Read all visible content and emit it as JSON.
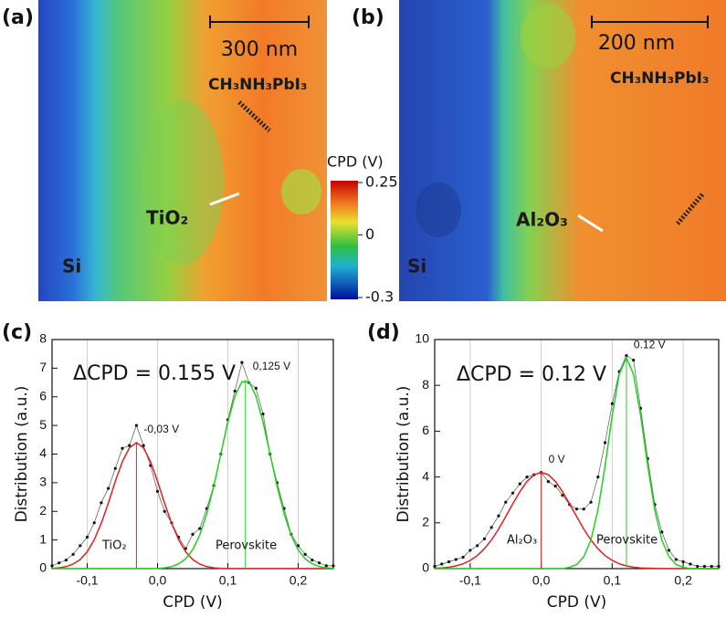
{
  "images": [
    {
      "label": "(a)",
      "scale_bar": "300 nm",
      "texts": [
        "CH₃NH₃PbI₃",
        "TiO₂",
        "Si"
      ]
    },
    {
      "label": "(b)",
      "scale_bar": "200 nm",
      "texts": [
        "CH₃NH₃PbI₃",
        "Al₂O₃",
        "Si"
      ]
    }
  ],
  "colorbar": {
    "title": "CPD (V)",
    "lim": [
      -0.3,
      0.25
    ],
    "ticks": [
      0.25,
      0,
      -0.3
    ]
  },
  "chart_data": [
    {
      "type": "line",
      "panel": "(c)",
      "xlabel": "CPD (V)",
      "ylabel": "Distribution (a.u.)",
      "annotations": [
        "ΔCPD = 0.155 V",
        "TiO₂",
        "Perovskite"
      ],
      "xlim": [
        -0.15,
        0.25
      ],
      "xticks": [
        {
          "value": -0.1,
          "label": "-0,1"
        },
        {
          "value": 0,
          "label": "0,0"
        },
        {
          "value": 0.1,
          "label": "0,1"
        },
        {
          "value": 0.2,
          "label": "0,2"
        }
      ],
      "ylim": [
        0,
        8
      ],
      "yticks": [
        0,
        1,
        2,
        3,
        4,
        5,
        6,
        7,
        8
      ],
      "grid": true,
      "x": [
        -0.15,
        -0.14,
        -0.13,
        -0.12,
        -0.11,
        -0.1,
        -0.09,
        -0.08,
        -0.07,
        -0.06,
        -0.05,
        -0.04,
        -0.03,
        -0.02,
        -0.01,
        0,
        0.01,
        0.02,
        0.03,
        0.04,
        0.05,
        0.06,
        0.07,
        0.08,
        0.09,
        0.1,
        0.11,
        0.12,
        0.13,
        0.14,
        0.15,
        0.16,
        0.17,
        0.18,
        0.19,
        0.2,
        0.21,
        0.22,
        0.23,
        0.24,
        0.25
      ],
      "series": [
        {
          "color": "#555555",
          "mode": "markers+line",
          "values": [
            0.1,
            0.2,
            0.3,
            0.5,
            0.8,
            1.1,
            1.6,
            2.3,
            2.8,
            3.5,
            4.2,
            4.3,
            5.0,
            4.3,
            3.6,
            2.7,
            2.0,
            1.6,
            1.1,
            0.7,
            1.2,
            1.4,
            2.1,
            2.9,
            4.0,
            5.2,
            6.2,
            7.2,
            6.5,
            6.3,
            5.4,
            4.0,
            3.0,
            2.1,
            1.2,
            0.8,
            0.5,
            0.3,
            0.2,
            0.1,
            0.1
          ]
        },
        {
          "color": "#e02020",
          "mode": "line",
          "values": [
            0.01,
            0.03,
            0.07,
            0.16,
            0.32,
            0.59,
            1.01,
            1.58,
            2.29,
            3.05,
            3.74,
            4.22,
            4.4,
            4.22,
            3.74,
            3.05,
            2.29,
            1.58,
            1.01,
            0.59,
            0.32,
            0.16,
            0.07,
            0.03,
            0.01,
            0,
            0,
            0,
            0,
            0,
            0,
            0,
            0,
            0,
            0,
            0,
            0,
            0,
            0,
            0,
            0
          ]
        },
        {
          "color": "#20d020",
          "mode": "line",
          "values": [
            0,
            0,
            0,
            0,
            0,
            0,
            0,
            0,
            0,
            0,
            0,
            0,
            0,
            0,
            0,
            0.01,
            0.03,
            0.07,
            0.17,
            0.34,
            0.66,
            1.17,
            1.92,
            2.88,
            4.0,
            5.12,
            6.02,
            6.53,
            6.53,
            6.02,
            5.12,
            4.0,
            2.88,
            1.92,
            1.17,
            0.66,
            0.34,
            0.17,
            0.07,
            0.03,
            0.01
          ]
        }
      ],
      "peaks": [
        {
          "x": -0.03,
          "y": 4.4,
          "label": "-0,03 V",
          "color": "#e02020"
        },
        {
          "x": 0.125,
          "y": 6.6,
          "label": "0,125 V",
          "color": "#20d020"
        }
      ]
    },
    {
      "type": "line",
      "panel": "(d)",
      "xlabel": "CPD (V)",
      "ylabel": "Distribution (a.u.)",
      "annotations": [
        "ΔCPD = 0.12 V",
        "Al₂O₃",
        "Perovskite"
      ],
      "xlim": [
        -0.15,
        0.25
      ],
      "xticks": [
        {
          "value": -0.1,
          "label": "-0,1"
        },
        {
          "value": 0,
          "label": "0,0"
        },
        {
          "value": 0.1,
          "label": "0,1"
        },
        {
          "value": 0.2,
          "label": "0,2"
        }
      ],
      "ylim": [
        0,
        10
      ],
      "yticks": [
        0,
        2,
        4,
        6,
        8,
        10
      ],
      "grid": true,
      "x": [
        -0.15,
        -0.14,
        -0.13,
        -0.12,
        -0.11,
        -0.1,
        -0.09,
        -0.08,
        -0.07,
        -0.06,
        -0.05,
        -0.04,
        -0.03,
        -0.02,
        -0.01,
        0,
        0.01,
        0.02,
        0.03,
        0.04,
        0.05,
        0.06,
        0.07,
        0.08,
        0.09,
        0.1,
        0.11,
        0.12,
        0.13,
        0.14,
        0.15,
        0.16,
        0.17,
        0.18,
        0.19,
        0.2,
        0.21,
        0.22,
        0.23,
        0.24,
        0.25
      ],
      "series": [
        {
          "color": "#555555",
          "mode": "markers+line",
          "values": [
            0.1,
            0.2,
            0.3,
            0.4,
            0.5,
            0.8,
            1.0,
            1.3,
            1.8,
            2.3,
            2.9,
            3.3,
            3.7,
            4.0,
            4.1,
            4.2,
            3.8,
            3.6,
            3.2,
            2.8,
            2.6,
            2.6,
            2.9,
            4.0,
            5.5,
            7.2,
            8.6,
            9.3,
            9.1,
            7.0,
            4.8,
            2.8,
            1.6,
            0.8,
            0.4,
            0.3,
            0.2,
            0.1,
            0.1,
            0.1,
            0.1
          ]
        },
        {
          "color": "#e02020",
          "mode": "line",
          "values": [
            0.02,
            0.03,
            0.06,
            0.12,
            0.21,
            0.36,
            0.57,
            0.87,
            1.25,
            1.73,
            2.27,
            2.83,
            3.36,
            3.81,
            4.1,
            4.2,
            4.1,
            3.81,
            3.36,
            2.83,
            2.27,
            1.73,
            1.25,
            0.87,
            0.57,
            0.36,
            0.21,
            0.12,
            0.06,
            0.03,
            0.02,
            0.01,
            0,
            0,
            0,
            0,
            0,
            0,
            0,
            0,
            0
          ]
        },
        {
          "color": "#20d020",
          "mode": "line",
          "values": [
            0,
            0,
            0,
            0,
            0,
            0,
            0,
            0,
            0,
            0,
            0,
            0,
            0,
            0,
            0,
            0,
            0,
            0,
            0,
            0.06,
            0.18,
            0.52,
            1.24,
            2.56,
            4.48,
            6.68,
            8.49,
            9.2,
            8.49,
            6.68,
            4.48,
            2.56,
            1.24,
            0.52,
            0.18,
            0.06,
            0,
            0,
            0,
            0,
            0
          ]
        }
      ],
      "peaks": [
        {
          "x": 0,
          "y": 4.2,
          "label": "0 V",
          "color": "#e02020"
        },
        {
          "x": 0.12,
          "y": 9.2,
          "label": "0.12 V",
          "color": "#20d020"
        }
      ]
    }
  ]
}
